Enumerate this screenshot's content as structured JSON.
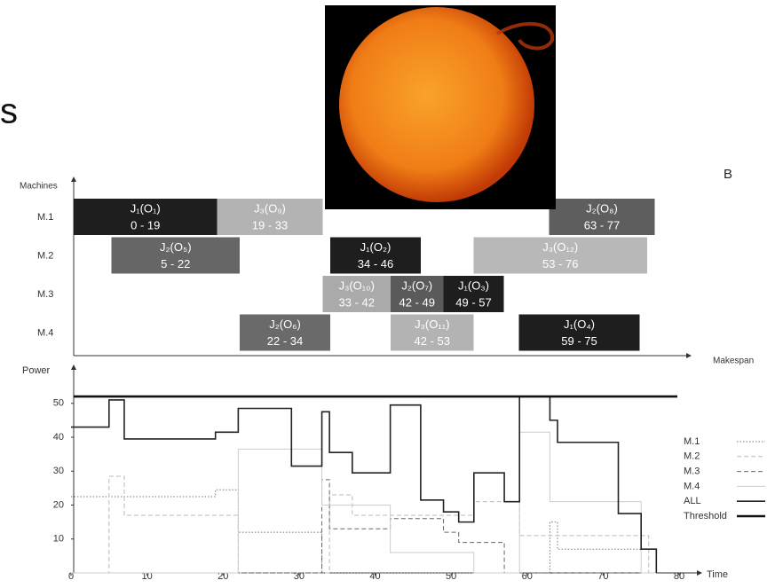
{
  "fragments": [
    "s",
    "B"
  ],
  "chart_data": [
    {
      "type": "gantt",
      "ylabel": "Machines",
      "xlabel": "Makespan",
      "categories": [
        "M.1",
        "M.2",
        "M.3",
        "M.4"
      ],
      "xlim": [
        0,
        80
      ],
      "tasks": [
        {
          "name": "J₁(O₁)",
          "machine": "M.1",
          "start": 0,
          "end": 19,
          "label": "0 - 19",
          "color": "#1e1e1e"
        },
        {
          "name": "J₃(O₉)",
          "machine": "M.1",
          "start": 19,
          "end": 33,
          "label": "19 - 33",
          "color": "#b3b3b3"
        },
        {
          "name": "J₂(O₈)",
          "machine": "M.1",
          "start": 63,
          "end": 77,
          "label": "63 - 77",
          "color": "#5e5e5e"
        },
        {
          "name": "J₂(O₅)",
          "machine": "M.2",
          "start": 5,
          "end": 22,
          "label": "5 - 22",
          "color": "#666666"
        },
        {
          "name": "J₁(O₂)",
          "machine": "M.2",
          "start": 34,
          "end": 46,
          "label": "34 - 46",
          "color": "#1e1e1e"
        },
        {
          "name": "J₃(O₁₂)",
          "machine": "M.2",
          "start": 53,
          "end": 76,
          "label": "53 - 76",
          "color": "#b8b8b8"
        },
        {
          "name": "J₃(O₁₀)",
          "machine": "M.3",
          "start": 33,
          "end": 42,
          "label": "33 - 42",
          "color": "#aaaaaa"
        },
        {
          "name": "J₂(O₇)",
          "machine": "M.3",
          "start": 42,
          "end": 49,
          "label": "42 - 49",
          "color": "#5a5a5a"
        },
        {
          "name": "J₁(O₃)",
          "machine": "M.3",
          "start": 49,
          "end": 57,
          "label": "49 - 57",
          "color": "#1e1e1e"
        },
        {
          "name": "J₂(O₆)",
          "machine": "M.4",
          "start": 22,
          "end": 34,
          "label": "22 - 34",
          "color": "#6a6a6a"
        },
        {
          "name": "J₃(O₁₁)",
          "machine": "M.4",
          "start": 42,
          "end": 53,
          "label": "42 - 53",
          "color": "#b3b3b3"
        },
        {
          "name": "J₁(O₄)",
          "machine": "M.4",
          "start": 59,
          "end": 75,
          "label": "59 - 75",
          "color": "#1e1e1e"
        }
      ]
    },
    {
      "type": "step",
      "ylabel": "Power",
      "xlabel": "Time",
      "xlim": [
        0,
        80
      ],
      "xticks": [
        0,
        10,
        20,
        30,
        40,
        50,
        60,
        70,
        80
      ],
      "ylim": [
        0,
        60
      ],
      "yticks": [
        10,
        20,
        30,
        40,
        50
      ],
      "x": [
        0,
        5,
        7,
        19,
        22,
        29,
        33,
        34,
        37,
        42,
        46,
        49,
        51,
        53,
        57,
        59,
        63,
        64,
        72,
        75,
        76,
        77
      ],
      "series": [
        {
          "name": "M.1",
          "color": "#777777",
          "style": "dotted",
          "width": 1,
          "values": [
            22.5,
            22.5,
            22.5,
            24.5,
            12,
            12,
            0,
            0,
            0,
            0,
            0,
            0,
            0,
            0,
            0,
            0,
            15,
            7,
            7,
            7,
            7,
            0
          ]
        },
        {
          "name": "M.2",
          "color": "#bbbbbb",
          "style": "dashed",
          "width": 1,
          "values": [
            0,
            28.5,
            17,
            17,
            0,
            0,
            0,
            23,
            17,
            17,
            17,
            17,
            17,
            21,
            21,
            11,
            11,
            11,
            11,
            11,
            0,
            0
          ]
        },
        {
          "name": "M.3",
          "color": "#666666",
          "style": "dashed",
          "width": 1,
          "values": [
            0,
            0,
            0,
            0,
            0,
            0,
            27.5,
            13,
            13,
            16,
            16,
            12,
            9,
            9,
            0,
            0,
            0,
            0,
            0,
            0,
            0,
            0
          ]
        },
        {
          "name": "M.4",
          "color": "#cccccc",
          "style": "solid",
          "width": 1,
          "values": [
            0,
            0,
            0,
            0,
            36.5,
            36.5,
            20,
            20,
            20,
            6,
            6,
            6,
            6,
            0,
            0,
            41.5,
            21,
            21,
            21,
            0,
            0,
            0
          ]
        },
        {
          "name": "ALL",
          "color": "#222222",
          "style": "solid",
          "width": 1.6,
          "values": [
            43,
            51,
            39.5,
            41.5,
            48.5,
            31.5,
            47.5,
            35.5,
            29.5,
            49.5,
            21.5,
            18,
            15,
            29.5,
            21,
            52,
            45,
            38.5,
            17.5,
            7,
            7,
            0
          ]
        }
      ],
      "threshold": {
        "name": "Threshold",
        "value": 52,
        "color": "#111111",
        "width": 2.6
      }
    }
  ]
}
